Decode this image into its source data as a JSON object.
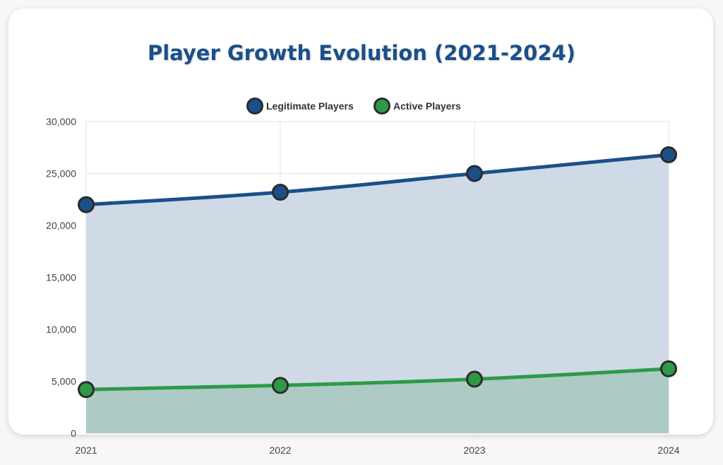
{
  "chart_data": {
    "type": "area",
    "title": "Player Growth Evolution (2021-2024)",
    "xlabel": "",
    "ylabel": "",
    "categories": [
      "2021",
      "2022",
      "2023",
      "2024"
    ],
    "ylim": [
      0,
      30000
    ],
    "yticks": [
      "0",
      "5,000",
      "10,000",
      "15,000",
      "20,000",
      "25,000",
      "30,000"
    ],
    "ytick_values": [
      0,
      5000,
      10000,
      15000,
      20000,
      25000,
      30000
    ],
    "grid": true,
    "legend_position": "top-center",
    "series": [
      {
        "name": "Legitimate Players",
        "values": [
          22000,
          23200,
          25000,
          26800
        ],
        "color": "#1a4f8a",
        "fill": "#cfdae6"
      },
      {
        "name": "Active Players",
        "values": [
          4200,
          4600,
          5200,
          6200
        ],
        "color": "#2e9a47",
        "fill": "#adcbc4"
      }
    ]
  }
}
